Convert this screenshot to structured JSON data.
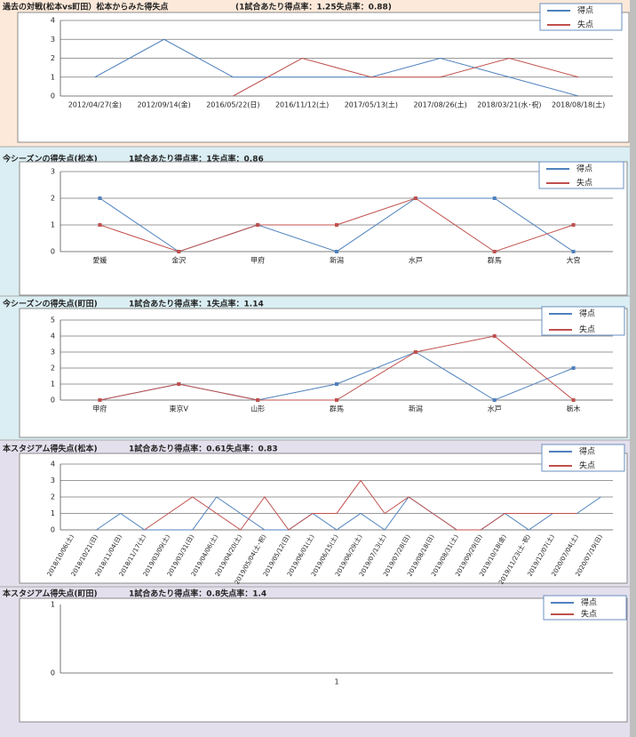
{
  "chart_data": [
    {
      "type": "line",
      "title": "過去の対戦(松本vs町田）松本からみた得失点",
      "subtitle": "(1試合あたり得点率：1.25失点率：0.88)",
      "categories": [
        "2012/04/27(金)",
        "2012/09/14(金)",
        "2016/05/22(日)",
        "2016/11/12(土)",
        "2017/05/13(土)",
        "2017/08/26(土)",
        "2018/03/21(水･祝)",
        "2018/08/18(土)"
      ],
      "series": [
        {
          "name": "得点",
          "color": "#4f81bd",
          "values": [
            1,
            3,
            1,
            1,
            1,
            2,
            1,
            0
          ]
        },
        {
          "name": "失点",
          "color": "#c0504d",
          "values": [
            null,
            null,
            0,
            2,
            1,
            1,
            2,
            1
          ]
        }
      ],
      "ylim": [
        0,
        4
      ],
      "yticks": [
        0,
        1,
        2,
        3,
        4
      ],
      "grid": true,
      "markers": false,
      "legend": "top-right"
    },
    {
      "type": "line",
      "title": "今シーズンの得失点(松本)",
      "subtitle": "1試合あたり得点率：1失点率：0.86",
      "categories": [
        "愛媛",
        "金沢",
        "甲府",
        "新潟",
        "水戸",
        "群馬",
        "大宮"
      ],
      "series": [
        {
          "name": "得点",
          "color": "#4f81bd",
          "values": [
            2,
            0,
            1,
            0,
            2,
            2,
            0
          ]
        },
        {
          "name": "失点",
          "color": "#c0504d",
          "values": [
            1,
            0,
            1,
            1,
            2,
            0,
            1
          ]
        }
      ],
      "ylim": [
        0,
        3
      ],
      "yticks": [
        0,
        1,
        2,
        3
      ],
      "grid": true,
      "markers": true,
      "legend": "top-right"
    },
    {
      "type": "line",
      "title": "今シーズンの得失点(町田)",
      "subtitle": "1試合あたり得点率：1失点率：1.14",
      "categories": [
        "甲府",
        "東京V",
        "山形",
        "群馬",
        "新潟",
        "水戸",
        "栃木"
      ],
      "series": [
        {
          "name": "得点",
          "color": "#4f81bd",
          "values": [
            0,
            1,
            0,
            1,
            3,
            0,
            2
          ]
        },
        {
          "name": "失点",
          "color": "#c0504d",
          "values": [
            0,
            1,
            0,
            0,
            3,
            4,
            0
          ]
        }
      ],
      "ylim": [
        0,
        5
      ],
      "yticks": [
        0,
        1,
        2,
        3,
        4,
        5
      ],
      "grid": true,
      "markers": true,
      "legend": "top-right"
    },
    {
      "type": "line",
      "title": "本スタジアム得失点(松本)",
      "subtitle": "1試合あたり得点率：0.61失点率：0.83",
      "categories": [
        "2018/10/06(土)",
        "2018/10/21(日)",
        "2018/11/04(日)",
        "2018/11/17(土)",
        "2019/03/09(土)",
        "2019/03/31(日)",
        "2019/04/06(土)",
        "2019/04/20(土)",
        "2019/05/04(土･祝)",
        "2019/05/12(日)",
        "2019/06/01(土)",
        "2019/06/15(土)",
        "2019/06/29(土)",
        "2019/07/13(土)",
        "2019/07/28(日)",
        "2019/08/18(日)",
        "2019/08/31(土)",
        "2019/09/29(日)",
        "2019/10/18(金)",
        "2019/11/23(土･祝)",
        "2019/12/07(土)",
        "2020/07/04(土)",
        "2020/07/19(日)"
      ],
      "series": [
        {
          "name": "得点",
          "color": "#4f81bd",
          "values": [
            null,
            0,
            1,
            0,
            0,
            0,
            2,
            1,
            0,
            0,
            1,
            0,
            1,
            0,
            2,
            1,
            0,
            0,
            1,
            0,
            1,
            1,
            2
          ]
        },
        {
          "name": "失点",
          "color": "#c0504d",
          "values": [
            null,
            null,
            null,
            0,
            1,
            2,
            1,
            0,
            2,
            0,
            1,
            1,
            3,
            1,
            2,
            1,
            0,
            0,
            1,
            1,
            1,
            1,
            null
          ]
        }
      ],
      "ylim": [
        0,
        4
      ],
      "yticks": [
        0,
        1,
        2,
        3,
        4
      ],
      "grid": true,
      "markers": false,
      "legend": "top-right"
    },
    {
      "type": "line",
      "title": "本スタジアム得失点(町田)",
      "subtitle": "1試合あたり得点率：0.8失点率：1.4",
      "categories": [
        "1"
      ],
      "series": [
        {
          "name": "得点",
          "color": "#4f81bd",
          "values": [
            null
          ]
        },
        {
          "name": "失点",
          "color": "#c0504d",
          "values": [
            null
          ]
        }
      ],
      "ylim": [
        0,
        1
      ],
      "yticks": [
        0,
        1
      ],
      "grid": false,
      "markers": false,
      "legend": "top-right"
    }
  ]
}
